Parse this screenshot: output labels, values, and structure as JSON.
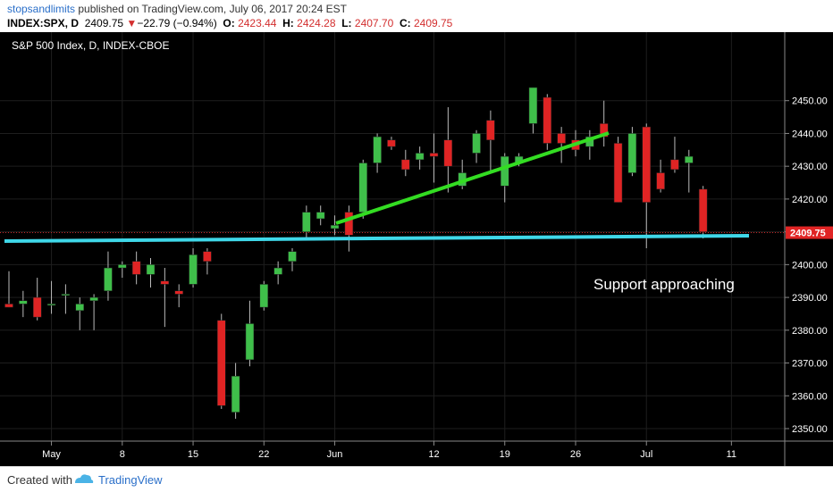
{
  "header": {
    "author": "stopsandlimits",
    "published": " published on TradingView.com, July 06, 2017 20:24 EST",
    "symbol": "INDEX:SPX, D",
    "last": "2409.75",
    "change": "−22.79 (−0.94%)",
    "o_label": "O:",
    "o_val": "2423.44",
    "h_label": "H:",
    "h_val": "2424.28",
    "l_label": "L:",
    "l_val": "2407.70",
    "c_label": "C:",
    "c_val": "2409.75"
  },
  "footer": {
    "created_label": "Created with",
    "brand": "TradingView"
  },
  "colors": {
    "up": "#3fbf4a",
    "down": "#e02424",
    "background": "#000000",
    "support": "#3fd7e8",
    "trend": "#33dd22",
    "price_line": "#c62828"
  },
  "chart_data": {
    "type": "candlestick",
    "title": "S&P 500 Index, D, INDEX-CBOE",
    "x_ticks": [
      "May",
      "8",
      "15",
      "22",
      "Jun",
      "12",
      "19",
      "26",
      "Jul",
      "11"
    ],
    "ylim": [
      2347,
      2460
    ],
    "y_ticks": [
      "2450.00",
      "2440.00",
      "2430.00",
      "2420.00",
      "2410.00",
      "2400.00",
      "2390.00",
      "2380.00",
      "2370.00",
      "2360.00",
      "2350.00"
    ],
    "last_price_label": "2409.75",
    "annotation": "Support approaching",
    "candles": [
      {
        "o": 2388,
        "h": 2398,
        "l": 2387,
        "c": 2387
      },
      {
        "o": 2388,
        "h": 2392,
        "l": 2384,
        "c": 2389
      },
      {
        "o": 2390,
        "h": 2396,
        "l": 2383,
        "c": 2384
      },
      {
        "o": 2388,
        "h": 2395,
        "l": 2385,
        "c": 2388
      },
      {
        "o": 2391,
        "h": 2394,
        "l": 2385,
        "c": 2391
      },
      {
        "o": 2386,
        "h": 2390,
        "l": 2380,
        "c": 2388
      },
      {
        "o": 2389,
        "h": 2391,
        "l": 2380,
        "c": 2390
      },
      {
        "o": 2392,
        "h": 2404,
        "l": 2389,
        "c": 2399
      },
      {
        "o": 2399,
        "h": 2401,
        "l": 2396,
        "c": 2400
      },
      {
        "o": 2401,
        "h": 2404,
        "l": 2394,
        "c": 2397
      },
      {
        "o": 2397,
        "h": 2402,
        "l": 2393,
        "c": 2400
      },
      {
        "o": 2395,
        "h": 2399,
        "l": 2381,
        "c": 2394
      },
      {
        "o": 2392,
        "h": 2394,
        "l": 2387,
        "c": 2391
      },
      {
        "o": 2394,
        "h": 2405,
        "l": 2393,
        "c": 2403
      },
      {
        "o": 2404,
        "h": 2405,
        "l": 2397,
        "c": 2401
      },
      {
        "o": 2383,
        "h": 2385,
        "l": 2356,
        "c": 2357
      },
      {
        "o": 2355,
        "h": 2370,
        "l": 2353,
        "c": 2366
      },
      {
        "o": 2371,
        "h": 2389,
        "l": 2369,
        "c": 2382
      },
      {
        "o": 2387,
        "h": 2395,
        "l": 2386,
        "c": 2394
      },
      {
        "o": 2397,
        "h": 2401,
        "l": 2394,
        "c": 2399
      },
      {
        "o": 2401,
        "h": 2405,
        "l": 2398,
        "c": 2404
      },
      {
        "o": 2410,
        "h": 2418,
        "l": 2408,
        "c": 2416
      },
      {
        "o": 2414,
        "h": 2418,
        "l": 2412,
        "c": 2416
      },
      {
        "o": 2411,
        "h": 2415,
        "l": 2409,
        "c": 2412
      },
      {
        "o": 2416,
        "h": 2418,
        "l": 2404,
        "c": 2409
      },
      {
        "o": 2416,
        "h": 2432,
        "l": 2414,
        "c": 2431
      },
      {
        "o": 2431,
        "h": 2440,
        "l": 2428,
        "c": 2439
      },
      {
        "o": 2438,
        "h": 2439,
        "l": 2435,
        "c": 2436
      },
      {
        "o": 2432,
        "h": 2435,
        "l": 2427,
        "c": 2429
      },
      {
        "o": 2432,
        "h": 2436,
        "l": 2429,
        "c": 2434
      },
      {
        "o": 2434,
        "h": 2440,
        "l": 2425,
        "c": 2433
      },
      {
        "o": 2438,
        "h": 2448,
        "l": 2422,
        "c": 2430
      },
      {
        "o": 2424,
        "h": 2432,
        "l": 2423,
        "c": 2428
      },
      {
        "o": 2434,
        "h": 2441,
        "l": 2431,
        "c": 2440
      },
      {
        "o": 2444,
        "h": 2447,
        "l": 2428,
        "c": 2438
      },
      {
        "o": 2424,
        "h": 2434,
        "l": 2419,
        "c": 2433
      },
      {
        "o": 2431,
        "h": 2434,
        "l": 2430,
        "c": 2433
      },
      {
        "o": 2443,
        "h": 2454,
        "l": 2440,
        "c": 2454
      },
      {
        "o": 2451,
        "h": 2452,
        "l": 2435,
        "c": 2437
      },
      {
        "o": 2440,
        "h": 2442,
        "l": 2431,
        "c": 2437
      },
      {
        "o": 2438,
        "h": 2441,
        "l": 2433,
        "c": 2435
      },
      {
        "o": 2436,
        "h": 2441,
        "l": 2432,
        "c": 2439
      },
      {
        "o": 2443,
        "h": 2450,
        "l": 2436,
        "c": 2439
      },
      {
        "o": 2437,
        "h": 2439,
        "l": 2419,
        "c": 2419
      },
      {
        "o": 2428,
        "h": 2442,
        "l": 2427,
        "c": 2440
      },
      {
        "o": 2442,
        "h": 2443,
        "l": 2405,
        "c": 2419
      },
      {
        "o": 2428,
        "h": 2432,
        "l": 2422,
        "c": 2423
      },
      {
        "o": 2432,
        "h": 2439,
        "l": 2428,
        "c": 2429
      },
      {
        "o": 2431,
        "h": 2435,
        "l": 2422,
        "c": 2433
      },
      {
        "o": 2423,
        "h": 2424,
        "l": 2408,
        "c": 2410
      }
    ]
  }
}
